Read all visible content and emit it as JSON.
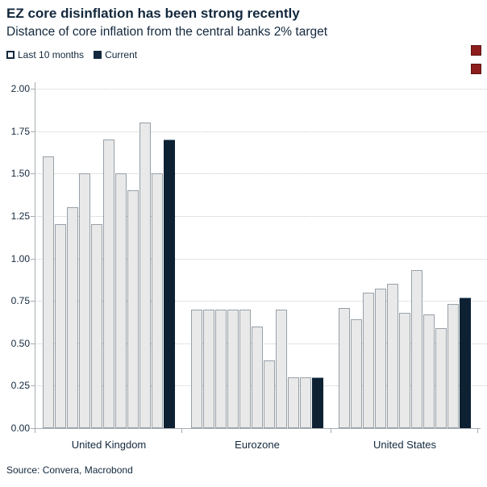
{
  "header": {
    "title": "EZ core disinflation has been strong recently",
    "subtitle": "Distance of core inflation from the central banks 2% target"
  },
  "legend": {
    "items": [
      {
        "label": "Last 10 months",
        "style": "outline"
      },
      {
        "label": "Current",
        "style": "solid"
      }
    ]
  },
  "chart_data": {
    "type": "bar",
    "title": "EZ core disinflation has been strong recently",
    "subtitle": "Distance of core inflation from the central banks 2% target",
    "ylim": [
      0,
      2.0
    ],
    "ytick_step": 0.25,
    "ytick_labels": [
      "2.00",
      "1.75",
      "1.50",
      "1.25",
      "1.00",
      "0.75",
      "0.50",
      "0.25",
      "0.00"
    ],
    "grid": "dotted-horizontal",
    "legend_position": "top-left",
    "series_names": [
      "Last 10 months",
      "Current"
    ],
    "categories": [
      "United Kingdom",
      "Eurozone",
      "United States"
    ],
    "groups": [
      {
        "label": "United Kingdom",
        "last_10_months": [
          1.6,
          1.2,
          1.3,
          1.5,
          1.2,
          1.7,
          1.5,
          1.4,
          1.8,
          1.5
        ],
        "current": 1.7
      },
      {
        "label": "Eurozone",
        "last_10_months": [
          0.7,
          0.7,
          0.7,
          0.7,
          0.7,
          0.6,
          0.4,
          0.7,
          0.3,
          0.3
        ],
        "current": 0.3
      },
      {
        "label": "United States",
        "last_10_months": [
          0.71,
          0.64,
          0.8,
          0.82,
          0.85,
          0.68,
          0.93,
          0.67,
          0.59,
          0.73
        ],
        "current": 0.77
      }
    ]
  },
  "footer": {
    "source": "Source: Convera, Macrobond"
  },
  "colors": {
    "text_navy": "#13283d",
    "bar_light_fill": "#e9e9e9",
    "bar_light_border": "#97a0a8",
    "bar_dark": "#0d2133",
    "gridline": "#c9c9c9",
    "axis": "#a7adb2",
    "red_marker": "#8e1d1d"
  },
  "side_markers": {
    "count": 2,
    "color": "#8e1d1d"
  }
}
